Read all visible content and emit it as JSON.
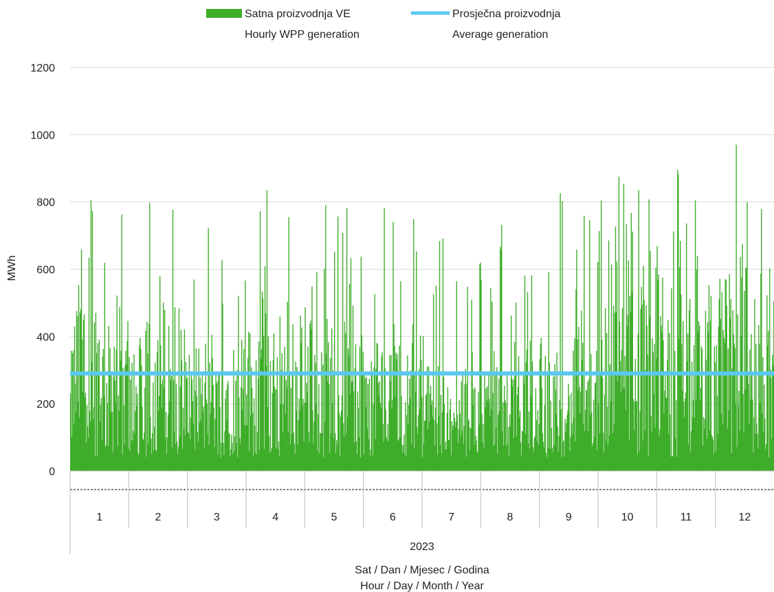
{
  "colors": {
    "generation": "#3fad2a",
    "average": "#5bc8f0",
    "grid": "#d9d9d9",
    "axis": "#bfbfbf"
  },
  "chart_data": {
    "type": "bar",
    "xlabel": [
      "Sat / Dan / Mjesec / Godina",
      "Hour / Day / Month / Year"
    ],
    "ylabel": "MWh",
    "ylim": [
      0,
      1200
    ],
    "yticks": [
      0,
      200,
      400,
      600,
      800,
      1000,
      1200
    ],
    "grid": true,
    "legend_position": "top",
    "year": "2023",
    "months": [
      "1",
      "2",
      "3",
      "4",
      "5",
      "6",
      "7",
      "8",
      "9",
      "10",
      "11",
      "12"
    ],
    "series": [
      {
        "name": [
          "Satna proizvodnja VE",
          "Hourly WPP generation"
        ],
        "kind": "bar",
        "resolution": "hourly",
        "monthly_peaks": [
          805,
          797,
          722,
          835,
          790,
          782,
          691,
          732,
          826,
          875,
          895,
          970
        ],
        "monthly_typical": [
          330,
          300,
          250,
          310,
          280,
          260,
          180,
          230,
          250,
          380,
          400,
          420
        ]
      },
      {
        "name": [
          "Prosječna proizvodnja",
          "Average generation"
        ],
        "kind": "line",
        "value": 290
      }
    ]
  }
}
